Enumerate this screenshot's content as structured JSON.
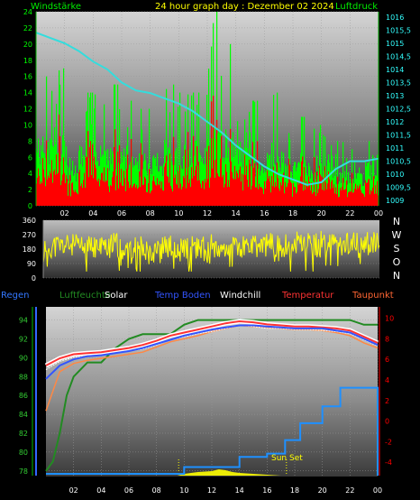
{
  "title": "24 hour graph day : Dezember 02 2024",
  "colors": {
    "wind": "#00ff00",
    "gust": "#ff0000",
    "pressure": "#33dddd",
    "winddir": "#ffff00",
    "humidity": "#228b22",
    "solar": "#ffff00",
    "rain": "#1e90ff",
    "temp": "#ff3333",
    "dew": "#ff8844",
    "windchill": "#ffffff",
    "soil": "#3355ff",
    "temp_axis": "#ff0000",
    "hum_axis": "#33cc33",
    "rain_axis": "#3366ff"
  },
  "compass": [
    "N",
    "W",
    "S",
    "O",
    "N"
  ],
  "chart_data": [
    {
      "type": "bar",
      "panel": "wind",
      "legend_left": "Windstärke",
      "legend_right": "Luftdruck",
      "x_ticks": [
        "02",
        "04",
        "06",
        "08",
        "10",
        "12",
        "14",
        "16",
        "18",
        "20",
        "22",
        "00"
      ],
      "y_left_ticks": [
        "24",
        "22",
        "20",
        "18",
        "16",
        "14",
        "12",
        "10",
        "8",
        "6",
        "4",
        "2",
        "0"
      ],
      "y_right_ticks": [
        "1016",
        "1015,5",
        "1015",
        "1014,5",
        "1014",
        "1013,5",
        "1013",
        "1012,5",
        "1012",
        "1011,5",
        "1011",
        "1010,5",
        "1010",
        "1009,5",
        "1009"
      ],
      "ylim_left": [
        0,
        24
      ],
      "ylim_right": [
        1008.8,
        1016.2
      ],
      "series": [
        {
          "name": "Windstärke",
          "role": "wind_max_hourly",
          "values": [
            16,
            17,
            9,
            14,
            16,
            15,
            13,
            12,
            11,
            15,
            14,
            14,
            24,
            20,
            12,
            13,
            14,
            9,
            11,
            10,
            10,
            8,
            7,
            8
          ]
        },
        {
          "name": "Windstärke",
          "role": "wind_avg_hourly",
          "values": [
            8,
            9,
            5,
            7,
            8,
            7,
            7,
            6,
            6,
            7,
            7,
            8,
            9,
            9,
            7,
            6,
            6,
            5,
            5,
            5,
            5,
            4,
            4,
            5
          ]
        },
        {
          "name": "Luftdruck",
          "x_hours": [
            0,
            0.5,
            1,
            1.5,
            2,
            3,
            4,
            5,
            6,
            7,
            8,
            9,
            10,
            11,
            12,
            13,
            14,
            15,
            16,
            17,
            18,
            19,
            20,
            21,
            22,
            23,
            24
          ],
          "values": [
            1015.4,
            1015.3,
            1015.2,
            1015.1,
            1015.0,
            1014.7,
            1014.3,
            1014.0,
            1013.5,
            1013.2,
            1013.1,
            1012.9,
            1012.7,
            1012.4,
            1012.0,
            1011.6,
            1011.1,
            1010.7,
            1010.3,
            1010.0,
            1009.8,
            1009.6,
            1009.7,
            1010.2,
            1010.5,
            1010.5,
            1010.6
          ]
        }
      ]
    },
    {
      "type": "line",
      "panel": "winddir",
      "y_ticks": [
        "360",
        "270",
        "180",
        "90",
        "0"
      ],
      "ylim": [
        0,
        360
      ],
      "series": [
        {
          "name": "Windrichtung",
          "x_hours": [
            0,
            1,
            2,
            3,
            4,
            5,
            6,
            7,
            8,
            9,
            10,
            11,
            12,
            13,
            14,
            15,
            16,
            17,
            18,
            19,
            20,
            21,
            22,
            23,
            24
          ],
          "values": [
            190,
            200,
            205,
            185,
            195,
            210,
            200,
            190,
            180,
            195,
            190,
            185,
            200,
            205,
            195,
            190,
            210,
            200,
            215,
            205,
            225,
            235,
            215,
            220,
            205
          ]
        }
      ]
    },
    {
      "type": "line",
      "panel": "temperature",
      "legend": [
        "Regen",
        "Luftfeuchte",
        "Solar",
        "Temp Boden",
        "Windchill",
        "Temperatur",
        "Taupunkt"
      ],
      "x_ticks": [
        "02",
        "04",
        "06",
        "08",
        "10",
        "12",
        "14",
        "16",
        "18",
        "20",
        "22",
        "00"
      ],
      "y_hum_ticks": [
        "94",
        "92",
        "90",
        "88",
        "86",
        "84",
        "82",
        "80",
        "78"
      ],
      "y_temp_ticks": [
        "10",
        "8",
        "6",
        "4",
        "2",
        "0",
        "-2",
        "-4"
      ],
      "ylim_hum": [
        77.5,
        95.4
      ],
      "ylim_temp": [
        -5.3,
        11.1
      ],
      "ylim_rain": [
        0,
        100
      ],
      "sunset_label": "Sun Set",
      "sunrise_hour": 9.6,
      "sunset_hour": 17.4,
      "series": [
        {
          "name": "Luftfeuchte",
          "x_hours": [
            0,
            0.5,
            1,
            1.5,
            2,
            3,
            4,
            5,
            6,
            7,
            8,
            9,
            10,
            11,
            12,
            13,
            14,
            15,
            16,
            17,
            18,
            19,
            20,
            21,
            22,
            23,
            24
          ],
          "values": [
            78,
            79,
            82,
            86,
            88,
            89.5,
            89.5,
            91,
            92,
            92.5,
            92.5,
            92.5,
            93.5,
            94,
            94,
            94,
            94,
            94,
            94,
            94,
            94,
            94,
            94,
            94,
            94,
            93.5,
            93.5
          ]
        },
        {
          "name": "Temperatur",
          "x_hours": [
            0,
            1,
            2,
            3,
            4,
            5,
            6,
            7,
            8,
            9,
            10,
            11,
            12,
            13,
            14,
            15,
            16,
            17,
            18,
            19,
            20,
            21,
            22,
            23,
            24
          ],
          "values": [
            5.4,
            6.1,
            6.5,
            6.6,
            6.7,
            6.9,
            7.1,
            7.4,
            7.8,
            8.3,
            8.6,
            8.9,
            9.2,
            9.5,
            9.7,
            9.6,
            9.4,
            9.3,
            9.2,
            9.2,
            9.1,
            9.0,
            8.8,
            8.2,
            7.6
          ]
        },
        {
          "name": "Taupunkt",
          "x_hours": [
            0,
            1,
            2,
            3,
            4,
            5,
            6,
            7,
            8,
            9,
            10,
            11,
            12,
            13,
            14,
            15,
            16,
            17,
            18,
            19,
            20,
            21,
            22,
            23,
            24
          ],
          "values": [
            1.0,
            4.8,
            5.6,
            5.9,
            6.1,
            6.3,
            6.5,
            6.7,
            7.2,
            7.7,
            8.0,
            8.3,
            8.7,
            9.0,
            9.3,
            9.2,
            9.1,
            9.0,
            8.9,
            8.9,
            8.8,
            8.6,
            8.3,
            7.6,
            7.1
          ]
        },
        {
          "name": "Windchill",
          "x_hours": [
            0,
            1,
            2,
            3,
            4,
            5,
            6,
            7,
            8,
            9,
            10,
            11,
            12,
            13,
            14,
            15,
            16,
            17,
            18,
            19,
            20,
            21,
            22,
            23,
            24
          ],
          "values": [
            5.0,
            5.8,
            6.2,
            6.3,
            6.4,
            6.6,
            6.8,
            7.0,
            7.4,
            7.9,
            8.2,
            8.5,
            8.7,
            9.0,
            9.3,
            9.2,
            9.0,
            9.0,
            8.9,
            8.9,
            8.8,
            8.7,
            8.5,
            7.9,
            7.3
          ]
        },
        {
          "name": "Temp Boden",
          "x_hours": [
            0,
            1,
            2,
            3,
            4,
            5,
            6,
            7,
            8,
            9,
            10,
            11,
            12,
            13,
            14,
            15,
            16,
            17,
            18,
            19,
            20,
            21,
            22,
            23,
            24
          ],
          "values": [
            4.1,
            5.4,
            6.0,
            6.3,
            6.4,
            6.6,
            6.8,
            7.1,
            7.5,
            7.9,
            8.3,
            8.6,
            8.9,
            9.1,
            9.3,
            9.3,
            9.2,
            9.1,
            9.0,
            9.0,
            9.0,
            8.8,
            8.6,
            8.0,
            7.4
          ]
        },
        {
          "name": "Regen",
          "x_hours": [
            0,
            9.5,
            10,
            13,
            14,
            16,
            17.1,
            17.3,
            18,
            18.4,
            19.3,
            20,
            20.2,
            21.3,
            22,
            24
          ],
          "values": [
            0,
            0,
            4,
            4,
            10,
            12,
            12,
            20,
            20,
            30,
            30,
            40,
            40,
            51,
            51,
            51
          ]
        },
        {
          "name": "Solar",
          "x_hours": [
            9.5,
            10,
            11,
            12,
            12.5,
            13,
            13.5,
            14,
            15,
            16,
            17
          ],
          "values": [
            0,
            2,
            4,
            5,
            7,
            6,
            4,
            3,
            2,
            1,
            0
          ]
        }
      ]
    }
  ]
}
